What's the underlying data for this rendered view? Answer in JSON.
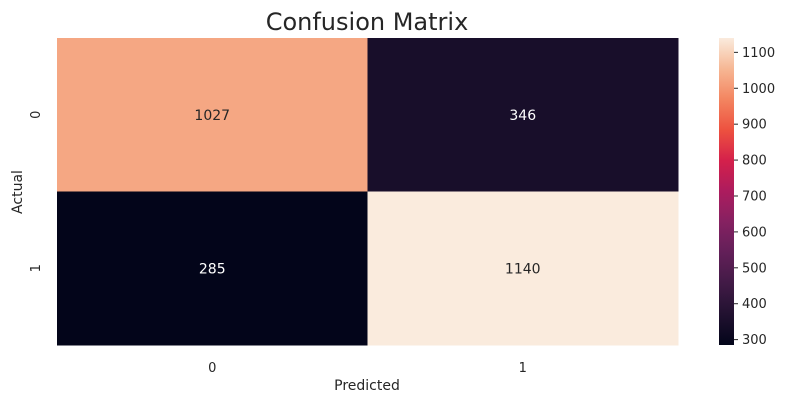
{
  "chart_data": {
    "type": "heatmap",
    "title": "Confusion Matrix",
    "xlabel": "Predicted",
    "ylabel": "Actual",
    "x_categories": [
      "0",
      "1"
    ],
    "y_categories": [
      "0",
      "1"
    ],
    "values": [
      [
        1027,
        346
      ],
      [
        285,
        1140
      ]
    ],
    "colorbar": {
      "min": 285,
      "max": 1140,
      "ticks": [
        300,
        400,
        500,
        600,
        700,
        800,
        900,
        1000,
        1100
      ]
    },
    "colormap": "rocket",
    "grid": false,
    "legend": "colorbar-right"
  }
}
